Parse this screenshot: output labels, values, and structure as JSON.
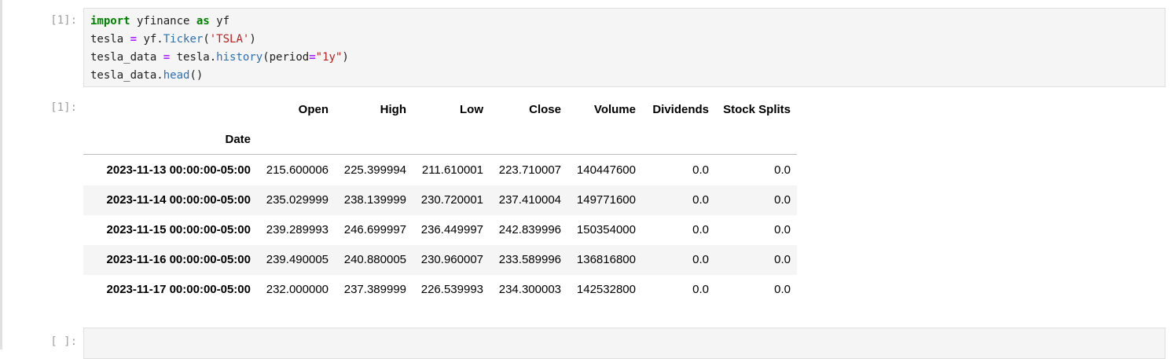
{
  "cells": {
    "code_prompt": "[1]:",
    "output_prompt": "[1]:",
    "empty_prompt": "[ ]:"
  },
  "code": {
    "line1": {
      "kw1": "import",
      "mid": " yfinance ",
      "kw2": "as",
      "tail": " yf"
    },
    "line2": {
      "a": "tesla ",
      "eq": "=",
      "b": " yf.",
      "attr": "Ticker",
      "c": "(",
      "str": "'TSLA'",
      "d": ")"
    },
    "line3": {
      "a": "tesla_data ",
      "eq": "=",
      "b": " tesla.",
      "attr": "history",
      "c": "(period",
      "eq2": "=",
      "str": "\"1y\"",
      "d": ")"
    },
    "line4": {
      "a": "tesla_data.",
      "attr": "head",
      "c": "()"
    }
  },
  "table": {
    "columns": [
      "Open",
      "High",
      "Low",
      "Close",
      "Volume",
      "Dividends",
      "Stock Splits"
    ],
    "index_name": "Date",
    "rows": [
      {
        "date": "2023-11-13 00:00:00-05:00",
        "values": [
          "215.600006",
          "225.399994",
          "211.610001",
          "223.710007",
          "140447600",
          "0.0",
          "0.0"
        ]
      },
      {
        "date": "2023-11-14 00:00:00-05:00",
        "values": [
          "235.029999",
          "238.139999",
          "230.720001",
          "237.410004",
          "149771600",
          "0.0",
          "0.0"
        ]
      },
      {
        "date": "2023-11-15 00:00:00-05:00",
        "values": [
          "239.289993",
          "246.699997",
          "236.449997",
          "242.839996",
          "150354000",
          "0.0",
          "0.0"
        ]
      },
      {
        "date": "2023-11-16 00:00:00-05:00",
        "values": [
          "239.490005",
          "240.880005",
          "230.960007",
          "233.589996",
          "136816800",
          "0.0",
          "0.0"
        ]
      },
      {
        "date": "2023-11-17 00:00:00-05:00",
        "values": [
          "232.000000",
          "237.389999",
          "226.539993",
          "234.300003",
          "142532800",
          "0.0",
          "0.0"
        ]
      }
    ]
  }
}
